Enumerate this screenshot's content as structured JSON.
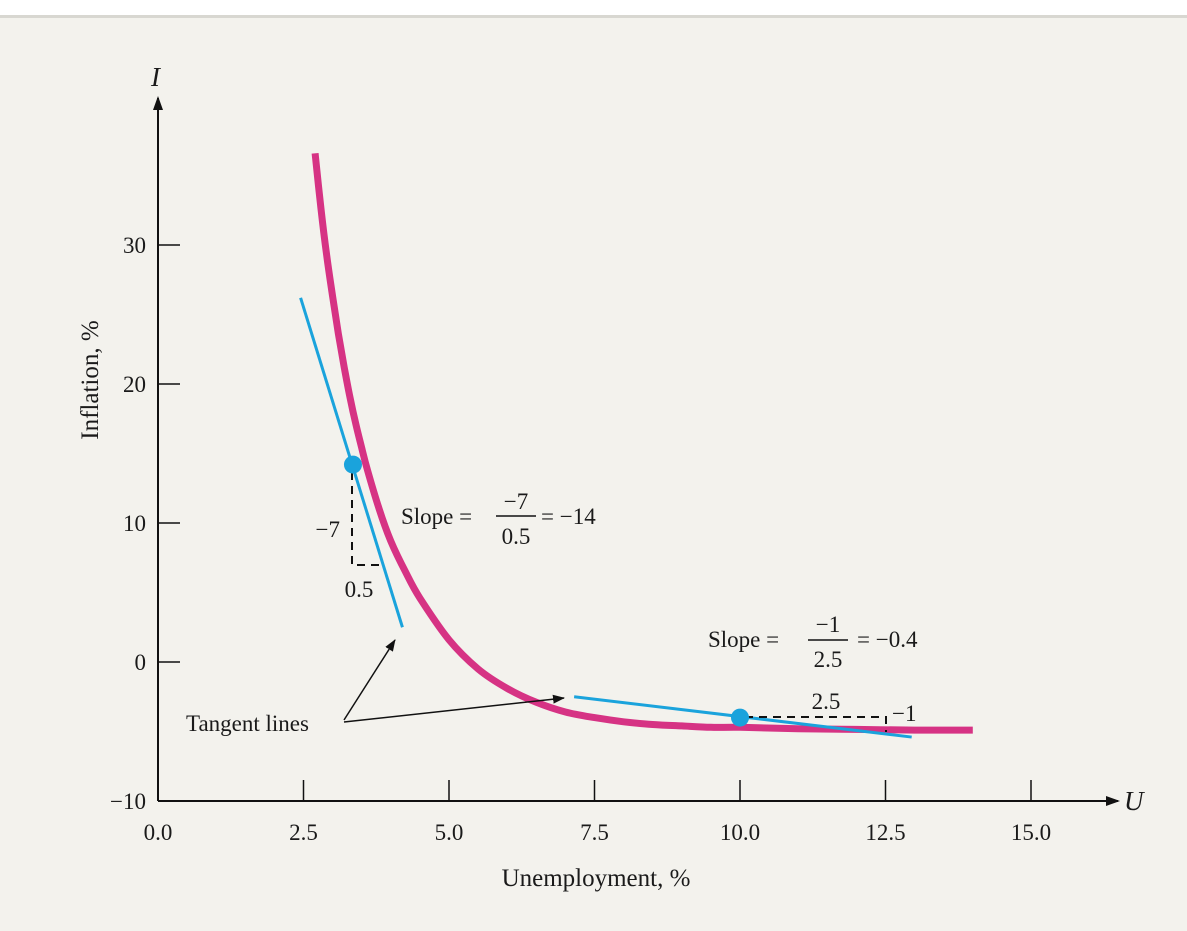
{
  "chart_data": {
    "type": "line",
    "title": "",
    "xlabel": "Unemployment, %",
    "ylabel": "Inflation, %",
    "x_axis_letter": "U",
    "y_axis_letter": "I",
    "xlim": [
      0,
      16.5
    ],
    "ylim": [
      -10,
      40
    ],
    "x_ticks": [
      {
        "value": 0,
        "label": "0.0"
      },
      {
        "value": 2.5,
        "label": "2.5"
      },
      {
        "value": 5,
        "label": "5.0"
      },
      {
        "value": 7.5,
        "label": "7.5"
      },
      {
        "value": 10,
        "label": "10.0"
      },
      {
        "value": 12.5,
        "label": "12.5"
      },
      {
        "value": 15,
        "label": "15.0"
      }
    ],
    "y_ticks": [
      {
        "value": -10,
        "label": "−10"
      },
      {
        "value": 0,
        "label": "0"
      },
      {
        "value": 10,
        "label": "10"
      },
      {
        "value": 20,
        "label": "20"
      },
      {
        "value": 30,
        "label": "30"
      }
    ],
    "curve": {
      "color": "#d63384",
      "points": [
        [
          2.7,
          36.6
        ],
        [
          2.8,
          32.6
        ],
        [
          2.9,
          29.2
        ],
        [
          3.0,
          26.3
        ],
        [
          3.1,
          23.6
        ],
        [
          3.2,
          21.2
        ],
        [
          3.3,
          19.0
        ],
        [
          3.4,
          17.1
        ],
        [
          3.5,
          15.4
        ],
        [
          3.6,
          13.8
        ],
        [
          3.8,
          11.0
        ],
        [
          4.0,
          8.7
        ],
        [
          4.25,
          6.5
        ],
        [
          4.5,
          4.6
        ],
        [
          5.0,
          1.6
        ],
        [
          5.5,
          -0.5
        ],
        [
          6.0,
          -1.9
        ],
        [
          6.5,
          -2.9
        ],
        [
          7.0,
          -3.6
        ],
        [
          7.5,
          -4.0
        ],
        [
          8.0,
          -4.3
        ],
        [
          8.5,
          -4.5
        ],
        [
          9.0,
          -4.6
        ],
        [
          9.5,
          -4.7
        ],
        [
          10.0,
          -4.7
        ],
        [
          11.0,
          -4.8
        ],
        [
          12.0,
          -4.85
        ],
        [
          13.0,
          -4.9
        ],
        [
          14.0,
          -4.9
        ]
      ]
    },
    "tangent_lines": [
      {
        "color": "#1aa3dc",
        "point": [
          3.35,
          14.2
        ],
        "from": [
          2.45,
          26.2
        ],
        "to": [
          4.2,
          2.5
        ]
      },
      {
        "color": "#1aa3dc",
        "point": [
          10.0,
          -4.0
        ],
        "from": [
          7.15,
          -2.5
        ],
        "to": [
          12.95,
          -5.4
        ]
      }
    ],
    "slope_annotations": [
      {
        "slope_word": "Slope =",
        "numerator": "−7",
        "denominator": "0.5",
        "result": "= −14",
        "rise_label": "−7",
        "run_label": "0.5"
      },
      {
        "slope_word": "Slope =",
        "numerator": "−1",
        "denominator": "2.5",
        "result": "= −0.4",
        "rise_label": "−1",
        "run_label": "2.5"
      }
    ],
    "callout": "Tangent lines",
    "grid": false,
    "legend": "none"
  }
}
